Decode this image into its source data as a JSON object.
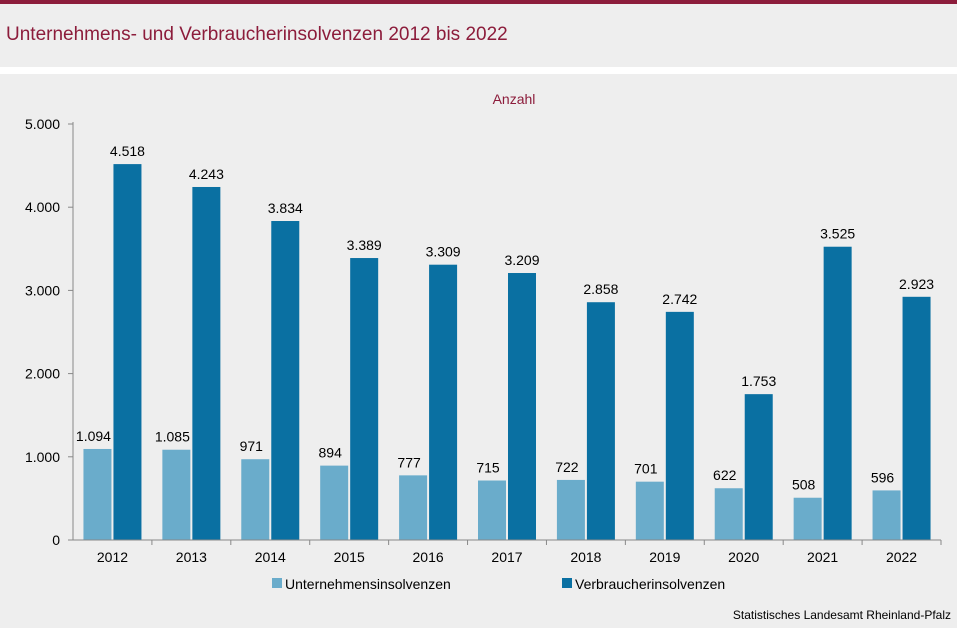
{
  "title": "Unternehmens- und Verbraucherinsolvenzen 2012 bis 2022",
  "source": "Statistisches Landesamt Rheinland-Pfalz",
  "colors": {
    "accent": "#8c1c3b",
    "series1": "#6aaccb",
    "series2": "#0a70a2"
  },
  "chart_data": {
    "type": "bar",
    "unit_label": "Anzahl",
    "categories": [
      "2012",
      "2013",
      "2014",
      "2015",
      "2016",
      "2017",
      "2018",
      "2019",
      "2020",
      "2021",
      "2022"
    ],
    "series": [
      {
        "name": "Unternehmensinsolvenzen",
        "values": [
          1094,
          1085,
          971,
          894,
          777,
          715,
          722,
          701,
          622,
          508,
          596
        ],
        "labels": [
          "1.094",
          "1.085",
          "971",
          "894",
          "777",
          "715",
          "722",
          "701",
          "622",
          "508",
          "596"
        ]
      },
      {
        "name": "Verbraucherinsolvenzen",
        "values": [
          4518,
          4243,
          3834,
          3389,
          3309,
          3209,
          2858,
          2742,
          1753,
          3525,
          2923
        ],
        "labels": [
          "4.518",
          "4.243",
          "3.834",
          "3.389",
          "3.309",
          "3.209",
          "2.858",
          "2.742",
          "1.753",
          "3.525",
          "2.923"
        ]
      }
    ],
    "yticks": [
      0,
      1000,
      2000,
      3000,
      4000,
      5000
    ],
    "ytick_labels": [
      "0",
      "1.000",
      "2.000",
      "3.000",
      "4.000",
      "5.000"
    ],
    "ylim": [
      0,
      5000
    ],
    "legend_position": "bottom",
    "grid": false
  }
}
